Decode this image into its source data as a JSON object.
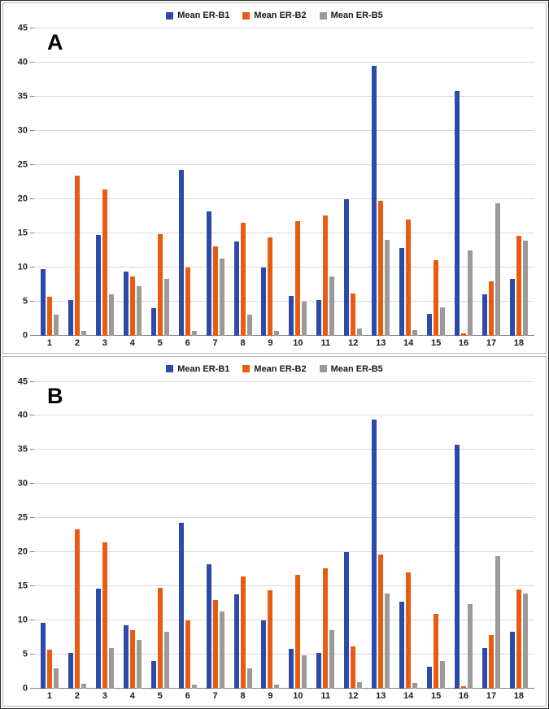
{
  "colors": {
    "series_blue": "#2b4aab",
    "series_orange": "#e85c0f",
    "series_gray": "#9a9a9a",
    "gridline": "#d9d9d9",
    "axis": "#7f7f7f"
  },
  "chart_data": [
    {
      "type": "bar",
      "panel_label": "A",
      "title": "",
      "xlabel": "",
      "ylabel": "",
      "ylim": [
        0,
        45
      ],
      "ytick_step": 5,
      "grid": true,
      "legend_position": "top",
      "categories": [
        "1",
        "2",
        "3",
        "4",
        "5",
        "6",
        "7",
        "8",
        "9",
        "10",
        "11",
        "12",
        "13",
        "14",
        "15",
        "16",
        "17",
        "18"
      ],
      "series": [
        {
          "name": "Mean ER-B1",
          "color": "#2b4aab",
          "values": [
            9.7,
            5.2,
            14.7,
            9.3,
            4.0,
            24.3,
            18.2,
            13.8,
            10.0,
            5.8,
            5.2,
            20.0,
            39.5,
            12.8,
            3.2,
            35.8,
            6.0,
            8.3
          ]
        },
        {
          "name": "Mean ER-B2",
          "color": "#e85c0f",
          "values": [
            5.7,
            23.4,
            21.4,
            8.6,
            14.8,
            10.0,
            13.0,
            16.5,
            14.4,
            16.7,
            17.6,
            6.2,
            19.7,
            17.0,
            11.0,
            0.3,
            7.9,
            14.6
          ]
        },
        {
          "name": "Mean ER-B5",
          "color": "#9a9a9a",
          "values": [
            3.0,
            0.7,
            6.0,
            7.2,
            8.3,
            0.6,
            11.3,
            3.0,
            0.6,
            4.9,
            8.6,
            1.0,
            14.0,
            0.8,
            4.1,
            12.4,
            19.4,
            13.9
          ]
        }
      ]
    },
    {
      "type": "bar",
      "panel_label": "B",
      "title": "",
      "xlabel": "",
      "ylabel": "",
      "ylim": [
        0,
        45
      ],
      "ytick_step": 5,
      "grid": true,
      "legend_position": "top",
      "categories": [
        "1",
        "2",
        "3",
        "4",
        "5",
        "6",
        "7",
        "8",
        "9",
        "10",
        "11",
        "12",
        "13",
        "14",
        "15",
        "16",
        "17",
        "18"
      ],
      "series": [
        {
          "name": "Mean ER-B1",
          "color": "#2b4aab",
          "values": [
            9.7,
            5.2,
            14.7,
            9.3,
            4.0,
            24.3,
            18.2,
            13.8,
            10.0,
            5.8,
            5.2,
            20.0,
            39.5,
            12.8,
            3.2,
            35.8,
            6.0,
            8.3
          ]
        },
        {
          "name": "Mean ER-B2",
          "color": "#e85c0f",
          "values": [
            5.7,
            23.4,
            21.4,
            8.6,
            14.8,
            10.0,
            13.0,
            16.5,
            14.4,
            16.7,
            17.6,
            6.2,
            19.7,
            17.0,
            11.0,
            0.3,
            7.9,
            14.6
          ]
        },
        {
          "name": "Mean ER-B5",
          "color": "#9a9a9a",
          "values": [
            3.0,
            0.7,
            6.0,
            7.2,
            8.3,
            0.6,
            11.3,
            3.0,
            0.6,
            4.9,
            8.6,
            1.0,
            14.0,
            0.8,
            4.1,
            12.4,
            19.4,
            13.9
          ]
        }
      ]
    }
  ]
}
